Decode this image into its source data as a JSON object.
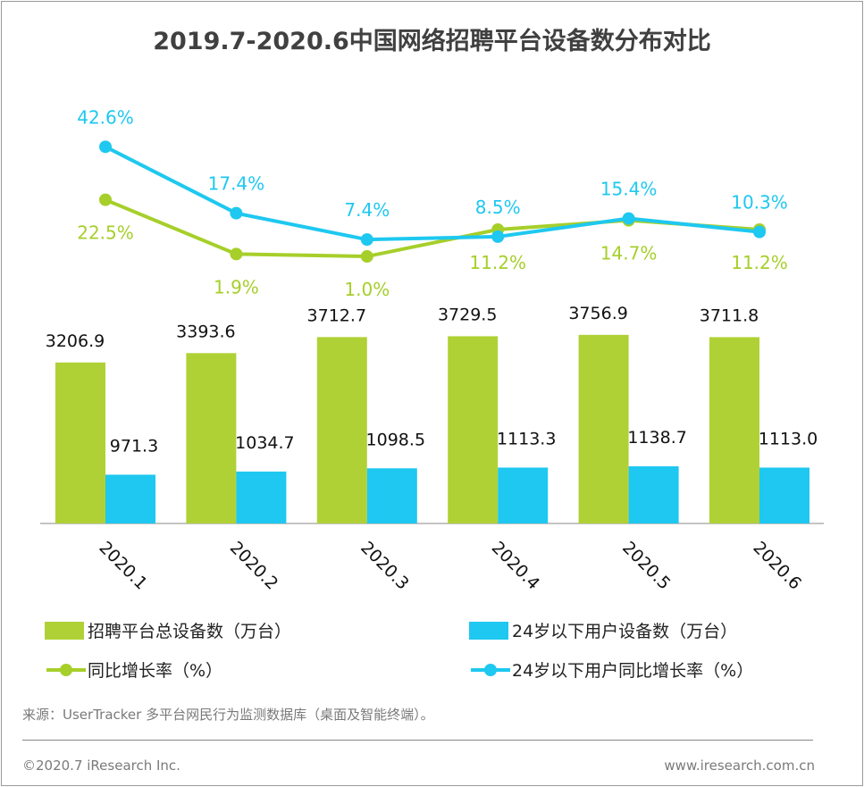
{
  "chart_data": {
    "type": "bar+line",
    "title": "2019.7-2020.6中国网络招聘平台设备数分布对比",
    "categories": [
      "2020.1",
      "2020.2",
      "2020.3",
      "2020.4",
      "2020.5",
      "2020.6"
    ],
    "series": [
      {
        "name": "招聘平台总设备数（万台）",
        "type": "bar",
        "color": "#b0d136",
        "values": [
          3206.9,
          3393.6,
          3712.7,
          3729.5,
          3756.9,
          3711.8
        ],
        "labels": [
          "3206.9",
          "3393.6",
          "3712.7",
          "3729.5",
          "3756.9",
          "3711.8"
        ]
      },
      {
        "name": "24岁以下用户设备数（万台）",
        "type": "bar",
        "color": "#1ec8f0",
        "values": [
          971.3,
          1034.7,
          1098.5,
          1113.3,
          1138.7,
          1113.0
        ],
        "labels": [
          "971.3",
          "1034.7",
          "1098.5",
          "1113.3",
          "1138.7",
          "1113.0"
        ]
      },
      {
        "name": "同比增长率（%）",
        "type": "line",
        "color": "#a6cf2a",
        "values": [
          22.5,
          1.9,
          1.0,
          11.2,
          14.7,
          11.2
        ],
        "labels": [
          "22.5%",
          "1.9%",
          "1.0%",
          "11.2%",
          "14.7%",
          "11.2%"
        ]
      },
      {
        "name": "24岁以下用户同比增长率（%）",
        "type": "line",
        "color": "#1ec8f0",
        "values": [
          42.6,
          17.4,
          7.4,
          8.5,
          15.4,
          10.3
        ],
        "labels": [
          "42.6%",
          "17.4%",
          "7.4%",
          "8.5%",
          "15.4%",
          "10.3%"
        ]
      }
    ],
    "legend": "bottom",
    "grid": false
  },
  "footer": {
    "source": "来源：UserTracker 多平台网民行为监测数据库（桌面及智能终端）。",
    "copyright": "©2020.7 iResearch Inc.",
    "website": "www.iresearch.com.cn"
  }
}
